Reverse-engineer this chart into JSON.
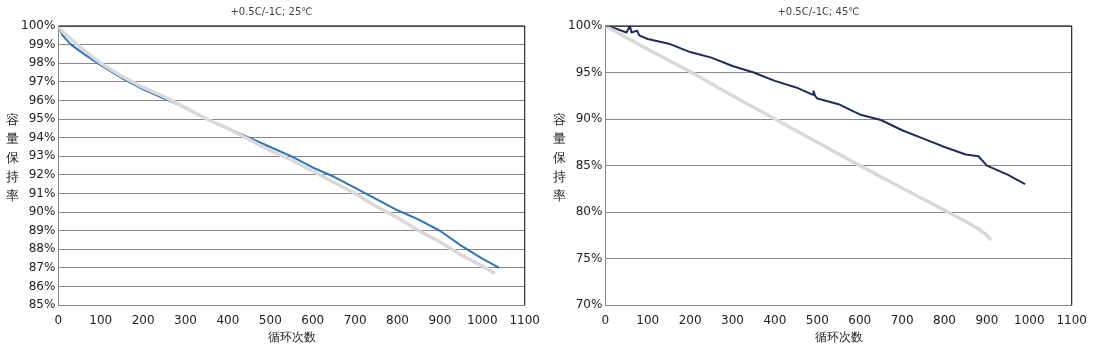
{
  "chart_data": [
    {
      "type": "line",
      "title": "+0.5C/-1C; 25℃",
      "xlabel": "循环次数",
      "ylabel": "容量保持率",
      "grid": "y",
      "legend": false,
      "marker": "none",
      "xlim": [
        0,
        1100
      ],
      "xticks": [
        0,
        100,
        200,
        300,
        400,
        500,
        600,
        700,
        800,
        900,
        1000,
        1100
      ],
      "ylim": [
        85,
        100
      ],
      "yticks": [
        {
          "value": 85,
          "label": "85%"
        },
        {
          "value": 86,
          "label": "86%"
        },
        {
          "value": 87,
          "label": "87%"
        },
        {
          "value": 88,
          "label": "88%"
        },
        {
          "value": 89,
          "label": "89%"
        },
        {
          "value": 90,
          "label": "90%"
        },
        {
          "value": 91,
          "label": "91%"
        },
        {
          "value": 92,
          "label": "92%"
        },
        {
          "value": 93,
          "label": "93%"
        },
        {
          "value": 94,
          "label": "94%"
        },
        {
          "value": 95,
          "label": "95%"
        },
        {
          "value": 96,
          "label": "96%"
        },
        {
          "value": 97,
          "label": "97%"
        },
        {
          "value": 98,
          "label": "98%"
        },
        {
          "value": 99,
          "label": "99%"
        },
        {
          "value": 100,
          "label": "100%"
        }
      ],
      "series": [
        {
          "color": "#d9d9d9",
          "x": [
            0,
            10,
            30,
            60,
            100,
            150,
            200,
            250,
            300,
            350,
            400,
            450,
            500,
            550,
            600,
            650,
            700,
            750,
            800,
            850,
            900,
            950,
            1000,
            1030
          ],
          "values": [
            100,
            99.7,
            99.3,
            98.7,
            98.0,
            97.3,
            96.7,
            96.2,
            95.6,
            95.0,
            94.5,
            93.9,
            93.3,
            92.8,
            92.2,
            91.6,
            91.0,
            90.3,
            89.7,
            89.0,
            88.4,
            87.7,
            87.1,
            86.7
          ]
        },
        {
          "color": "#2e75b6",
          "x": [
            0,
            10,
            30,
            60,
            100,
            150,
            200,
            250,
            300,
            350,
            400,
            450,
            500,
            550,
            600,
            650,
            700,
            750,
            800,
            850,
            900,
            950,
            1000,
            1040
          ],
          "values": [
            100,
            99.5,
            99.0,
            98.5,
            97.9,
            97.2,
            96.6,
            96.1,
            95.6,
            95.0,
            94.5,
            94.0,
            93.5,
            93.0,
            92.4,
            91.9,
            91.3,
            90.7,
            90.1,
            89.6,
            89.0,
            88.2,
            87.5,
            87.0
          ]
        }
      ]
    },
    {
      "type": "line",
      "title": "+0.5C/-1C; 45℃",
      "xlabel": "循环次数",
      "ylabel": "容量保持率",
      "grid": "y",
      "legend": false,
      "marker": "none",
      "xlim": [
        0,
        1100
      ],
      "xticks": [
        0,
        100,
        200,
        300,
        400,
        500,
        600,
        700,
        800,
        900,
        1000,
        1100
      ],
      "ylim": [
        70,
        100
      ],
      "yticks": [
        {
          "value": 70,
          "label": "70%"
        },
        {
          "value": 75,
          "label": "75%"
        },
        {
          "value": 80,
          "label": "80%"
        },
        {
          "value": 85,
          "label": "85%"
        },
        {
          "value": 90,
          "label": "90%"
        },
        {
          "value": 95,
          "label": "95%"
        },
        {
          "value": 100,
          "label": "100%"
        }
      ],
      "series": [
        {
          "color": "#d9d9d9",
          "x": [
            0,
            100,
            200,
            300,
            400,
            500,
            600,
            700,
            800,
            850,
            880,
            900,
            910
          ],
          "values": [
            100,
            97.5,
            95.1,
            92.5,
            90.0,
            87.5,
            85.0,
            82.6,
            80.2,
            79.0,
            78.2,
            77.5,
            77.0
          ]
        },
        {
          "color": "#1f2d5c",
          "x": [
            0,
            20,
            50,
            58,
            62,
            75,
            80,
            100,
            150,
            200,
            250,
            300,
            350,
            400,
            450,
            490,
            491,
            495,
            500,
            550,
            600,
            650,
            700,
            750,
            800,
            850,
            880,
            900,
            950,
            990
          ],
          "values": [
            100,
            99.8,
            99.3,
            100,
            99.3,
            99.5,
            99.0,
            98.6,
            98.1,
            97.2,
            96.6,
            95.7,
            95.0,
            94.1,
            93.4,
            92.6,
            93.0,
            92.5,
            92.2,
            91.6,
            90.5,
            89.9,
            88.8,
            87.9,
            87.0,
            86.2,
            86.0,
            85.0,
            84.0,
            83.0
          ]
        }
      ]
    }
  ]
}
